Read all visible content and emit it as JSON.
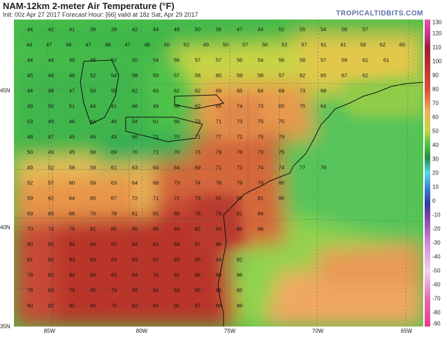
{
  "header": {
    "title": "NAM-12km 2-meter Air Temperature (°F)",
    "subtitle": "Init: 00z Apr 27 2017   Forecast Hour: [66]   valid at 18z Sat, Apr 29 2017",
    "brand": "TROPICALTIDBITS.COM"
  },
  "colorbar": {
    "labels": [
      "130",
      "120",
      "110",
      "100",
      "90",
      "80",
      "70",
      "60",
      "50",
      "40",
      "30",
      "20",
      "10",
      "0",
      "-10",
      "-20",
      "-30",
      "-40",
      "-50",
      "-60",
      "-70",
      "-80",
      "-90"
    ]
  },
  "axes": {
    "lat_labels": [
      "45N",
      "40N",
      "35N"
    ],
    "lon_labels": [
      "85W",
      "80W",
      "75W",
      "70W",
      "65W"
    ]
  },
  "grid_values": [
    [
      "44",
      "42",
      "41",
      "39",
      "39",
      "42",
      "44",
      "48",
      "50",
      "56",
      "47",
      "44",
      "52",
      "55",
      "54",
      "58",
      "57"
    ],
    [
      "44",
      "47",
      "46",
      "47",
      "48",
      "47",
      "48",
      "50",
      "52",
      "49",
      "50",
      "57",
      "50",
      "52",
      "57",
      "61",
      "61",
      "58",
      "62",
      "65"
    ],
    [
      "44",
      "44",
      "45",
      "45",
      "52",
      "50",
      "54",
      "56",
      "57",
      "57",
      "56",
      "54",
      "56",
      "58",
      "57",
      "59",
      "61",
      "61"
    ],
    [
      "45",
      "49",
      "48",
      "52",
      "54",
      "58",
      "59",
      "57",
      "58",
      "60",
      "59",
      "58",
      "57",
      "62",
      "65",
      "67",
      "62"
    ],
    [
      "44",
      "48",
      "47",
      "53",
      "55",
      "62",
      "63",
      "62",
      "62",
      "69",
      "65",
      "64",
      "69",
      "73",
      "68"
    ],
    [
      "49",
      "50",
      "51",
      "44",
      "41",
      "46",
      "49",
      "58",
      "62",
      "65",
      "74",
      "73",
      "65",
      "75",
      "64"
    ],
    [
      "53",
      "49",
      "46",
      "44",
      "46",
      "54",
      "61",
      "66",
      "73",
      "71",
      "73",
      "75",
      "75"
    ],
    [
      "48",
      "47",
      "45",
      "46",
      "43",
      "60",
      "71",
      "70",
      "71",
      "77",
      "72",
      "75",
      "79"
    ],
    [
      "50",
      "49",
      "45",
      "68",
      "69",
      "70",
      "71",
      "70",
      "73",
      "79",
      "76",
      "73",
      "75"
    ],
    [
      "49",
      "52",
      "58",
      "59",
      "61",
      "63",
      "64",
      "64",
      "69",
      "71",
      "72",
      "74",
      "74",
      "77",
      "78"
    ],
    [
      "52",
      "57",
      "60",
      "59",
      "63",
      "64",
      "68",
      "73",
      "74",
      "78",
      "79",
      "79",
      "80"
    ],
    [
      "59",
      "62",
      "64",
      "65",
      "67",
      "72",
      "71",
      "72",
      "79",
      "81",
      "82",
      "81",
      "80"
    ],
    [
      "63",
      "65",
      "66",
      "70",
      "78",
      "81",
      "81",
      "80",
      "78",
      "79",
      "81",
      "84"
    ],
    [
      "70",
      "73",
      "79",
      "81",
      "85",
      "85",
      "85",
      "84",
      "82",
      "83",
      "86",
      "86"
    ],
    [
      "80",
      "82",
      "84",
      "84",
      "82",
      "84",
      "83",
      "84",
      "87",
      "86"
    ],
    [
      "81",
      "82",
      "83",
      "83",
      "83",
      "83",
      "82",
      "83",
      "85",
      "84",
      "82"
    ],
    [
      "78",
      "82",
      "84",
      "83",
      "83",
      "84",
      "79",
      "82",
      "86",
      "86",
      "86"
    ],
    [
      "78",
      "83",
      "79",
      "85",
      "79",
      "85",
      "84",
      "84",
      "85",
      "85",
      "85"
    ],
    [
      "80",
      "82",
      "85",
      "80",
      "76",
      "82",
      "84",
      "85",
      "87",
      "86",
      "86"
    ]
  ]
}
